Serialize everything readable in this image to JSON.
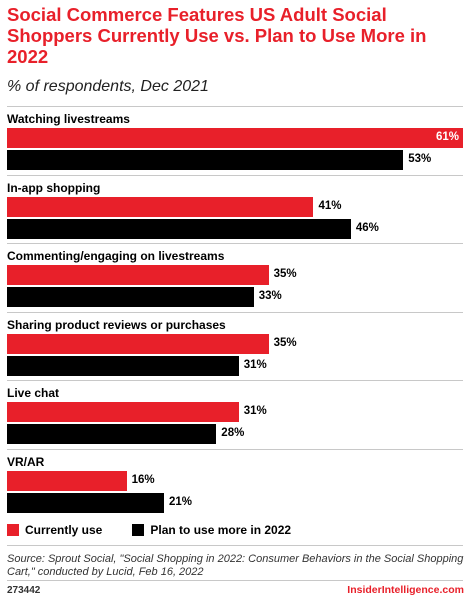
{
  "header": {
    "title": "Social Commerce Features US Adult Social Shoppers Currently Use vs. Plan to Use More in 2022",
    "subtitle": "% of respondents, Dec 2021"
  },
  "colors": {
    "currently_use": "#e8202a",
    "plan_to_use": "#000000"
  },
  "chart_data": {
    "type": "bar",
    "orientation": "horizontal",
    "title": "Social Commerce Features US Adult Social Shoppers Currently Use vs. Plan to Use More in 2022",
    "subtitle": "% of respondents, Dec 2021",
    "categories": [
      "Watching livestreams",
      "In-app shopping",
      "Commenting/engaging on livestreams",
      "Sharing product reviews or purchases",
      "Live chat",
      "VR/AR"
    ],
    "series": [
      {
        "name": "Currently use",
        "values": [
          61,
          41,
          35,
          35,
          31,
          16
        ],
        "labels": [
          "61%",
          "41%",
          "35%",
          "35%",
          "31%",
          "16%"
        ]
      },
      {
        "name": "Plan to use more in 2022",
        "values": [
          53,
          46,
          33,
          31,
          28,
          21
        ],
        "labels": [
          "53%",
          "46%",
          "33%",
          "31%",
          "28%",
          "21%"
        ]
      }
    ],
    "xlim": [
      0,
      61
    ],
    "legend_position": "bottom-left",
    "grid": false
  },
  "footer": {
    "source": "Source: Sprout Social, \"Social Shopping in 2022: Consumer Behaviors in the Social Shopping Cart,\" conducted by Lucid, Feb 16, 2022",
    "chart_id": "273442",
    "brand": "InsiderIntelligence.com"
  }
}
